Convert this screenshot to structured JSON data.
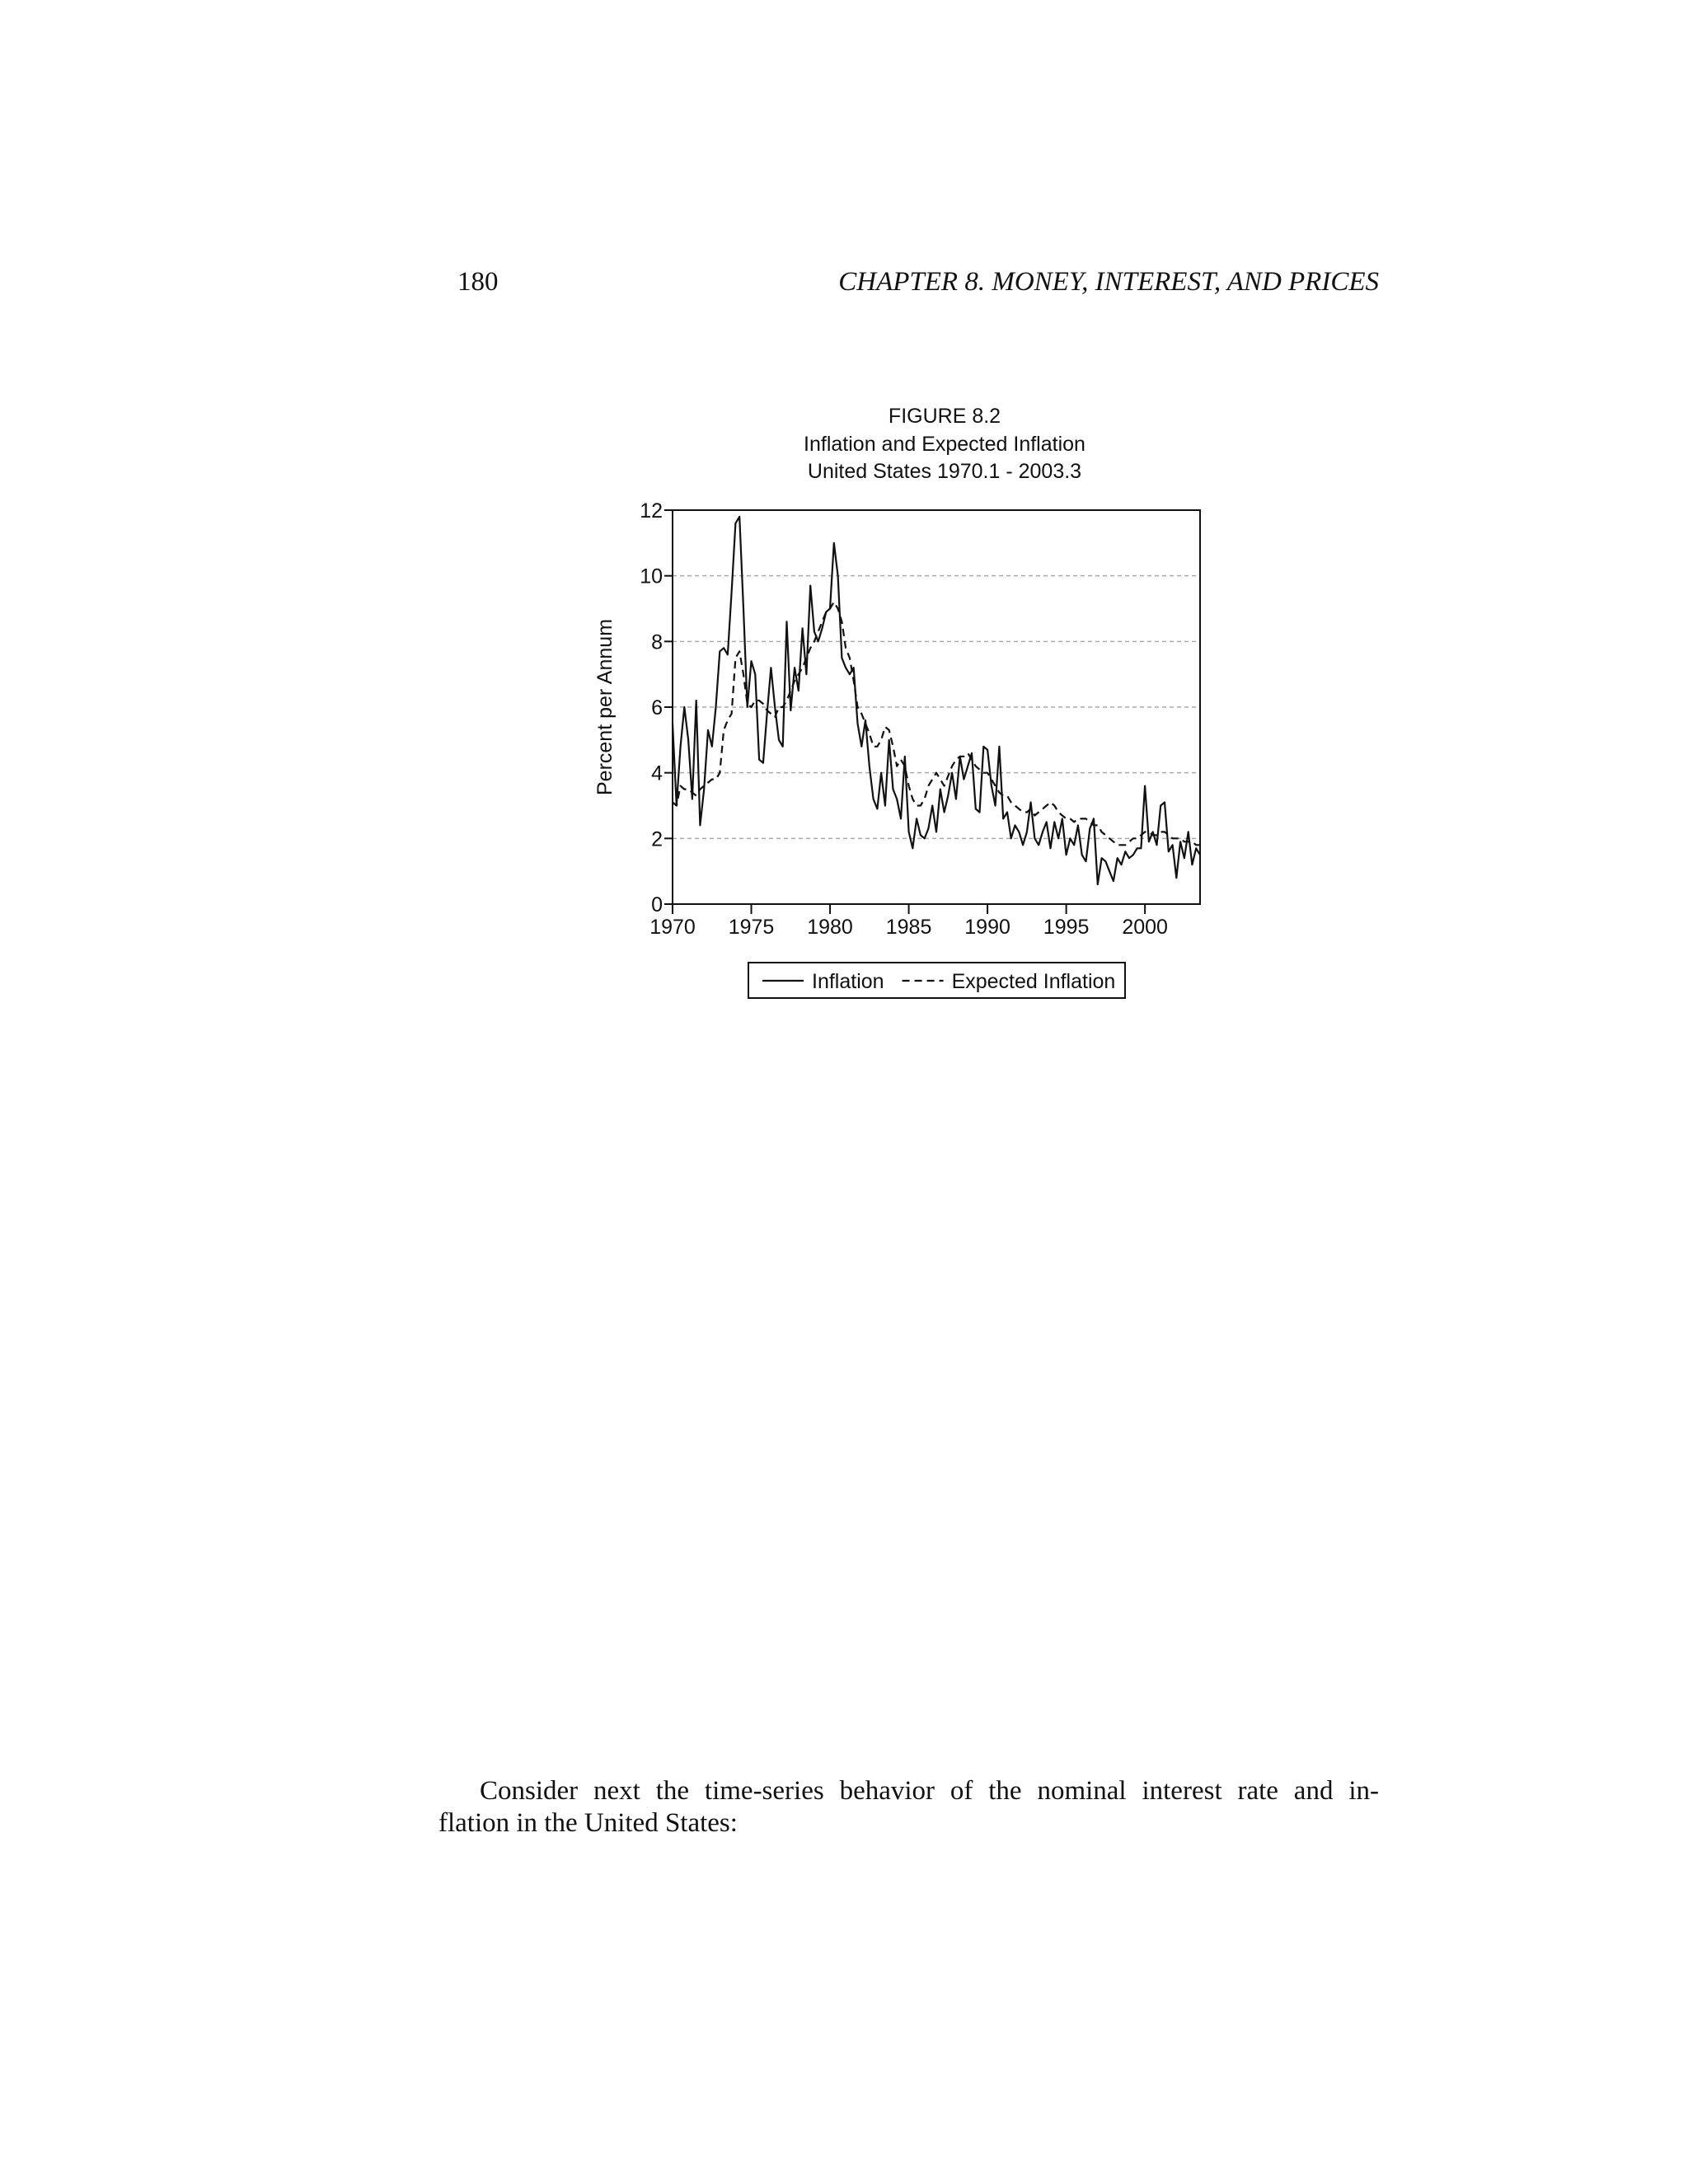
{
  "header": {
    "page_number": "180",
    "chapter": "CHAPTER 8.  MONEY, INTEREST, AND PRICES"
  },
  "chart_data": {
    "type": "line",
    "title": [
      "FIGURE 8.2",
      "Inflation and Expected Inflation",
      "United States 1970.1 - 2003.3"
    ],
    "y_label": "Percent per Annum",
    "xlim": [
      1970,
      2003.5
    ],
    "ylim": [
      0,
      12
    ],
    "xticks": [
      1970,
      1975,
      1980,
      1985,
      1990,
      1995,
      2000
    ],
    "yticks": [
      0,
      2,
      4,
      6,
      8,
      10,
      12
    ],
    "grid": true,
    "legend": "bottom",
    "x": [
      1970,
      1970.25,
      1970.5,
      1970.75,
      1971,
      1971.25,
      1971.5,
      1971.75,
      1972,
      1972.25,
      1972.5,
      1972.75,
      1973,
      1973.25,
      1973.5,
      1973.75,
      1974,
      1974.25,
      1974.5,
      1974.75,
      1975,
      1975.25,
      1975.5,
      1975.75,
      1976,
      1976.25,
      1976.5,
      1976.75,
      1977,
      1977.25,
      1977.5,
      1977.75,
      1978,
      1978.25,
      1978.5,
      1978.75,
      1979,
      1979.25,
      1979.5,
      1979.75,
      1980,
      1980.25,
      1980.5,
      1980.75,
      1981,
      1981.25,
      1981.5,
      1981.75,
      1982,
      1982.25,
      1982.5,
      1982.75,
      1983,
      1983.25,
      1983.5,
      1983.75,
      1984,
      1984.25,
      1984.5,
      1984.75,
      1985,
      1985.25,
      1985.5,
      1985.75,
      1986,
      1986.25,
      1986.5,
      1986.75,
      1987,
      1987.25,
      1987.5,
      1987.75,
      1988,
      1988.25,
      1988.5,
      1988.75,
      1989,
      1989.25,
      1989.5,
      1989.75,
      1990,
      1990.25,
      1990.5,
      1990.75,
      1991,
      1991.25,
      1991.5,
      1991.75,
      1992,
      1992.25,
      1992.5,
      1992.75,
      1993,
      1993.25,
      1993.5,
      1993.75,
      1994,
      1994.25,
      1994.5,
      1994.75,
      1995,
      1995.25,
      1995.5,
      1995.75,
      1996,
      1996.25,
      1996.5,
      1996.75,
      1997,
      1997.25,
      1997.5,
      1997.75,
      1998,
      1998.25,
      1998.5,
      1998.75,
      1999,
      1999.25,
      1999.5,
      1999.75,
      2000,
      2000.25,
      2000.5,
      2000.75,
      2001,
      2001.25,
      2001.5,
      2001.75,
      2002,
      2002.25,
      2002.5,
      2002.75,
      2003,
      2003.25,
      2003.5
    ],
    "series": [
      {
        "name": "Inflation",
        "color": "#111111",
        "dash": "solid",
        "values": [
          5.5,
          3.0,
          4.8,
          6.0,
          5.0,
          3.2,
          6.2,
          2.4,
          3.5,
          5.3,
          4.8,
          6.0,
          7.7,
          7.8,
          7.6,
          9.5,
          11.6,
          11.8,
          9.0,
          6.0,
          7.4,
          7.0,
          4.4,
          4.3,
          5.8,
          7.2,
          6.0,
          5.0,
          4.8,
          8.6,
          5.9,
          7.2,
          6.5,
          8.4,
          7.0,
          9.7,
          8.3,
          8.0,
          8.4,
          8.9,
          9.0,
          11.0,
          10.0,
          7.5,
          7.2,
          7.0,
          7.2,
          5.5,
          4.8,
          5.6,
          4.2,
          3.2,
          2.9,
          4.0,
          3.0,
          5.0,
          3.5,
          3.2,
          2.6,
          4.5,
          2.2,
          1.7,
          2.6,
          2.1,
          2.0,
          2.3,
          3.0,
          2.2,
          3.5,
          2.8,
          3.3,
          4.0,
          3.2,
          4.5,
          3.8,
          4.2,
          4.6,
          2.9,
          2.8,
          4.8,
          4.7,
          3.6,
          3.0,
          4.8,
          2.6,
          2.8,
          2.0,
          2.4,
          2.2,
          1.8,
          2.2,
          3.1,
          2.0,
          1.8,
          2.2,
          2.5,
          1.7,
          2.5,
          2.0,
          2.6,
          1.5,
          2.0,
          1.8,
          2.4,
          1.5,
          1.3,
          2.3,
          2.6,
          0.6,
          1.4,
          1.3,
          1.0,
          0.7,
          1.4,
          1.2,
          1.6,
          1.4,
          1.5,
          1.7,
          1.7,
          3.6,
          1.9,
          2.2,
          1.8,
          3.0,
          3.1,
          1.6,
          1.8,
          0.8,
          1.9,
          1.4,
          2.2,
          1.2,
          1.7,
          1.5
        ]
      },
      {
        "name": "Expected Inflation",
        "color": "#111111",
        "dash": "dashed",
        "values": [
          3.1,
          3.0,
          3.6,
          3.5,
          3.5,
          3.4,
          3.3,
          3.5,
          3.6,
          3.7,
          3.8,
          3.8,
          4.0,
          5.3,
          5.6,
          5.8,
          7.5,
          7.7,
          7.0,
          6.1,
          6.0,
          6.2,
          6.2,
          6.1,
          5.9,
          5.8,
          5.7,
          6.0,
          6.0,
          6.2,
          6.5,
          6.8,
          7.0,
          7.2,
          7.5,
          7.8,
          8.0,
          8.3,
          8.6,
          8.9,
          9.0,
          9.2,
          9.0,
          8.6,
          7.8,
          7.5,
          6.8,
          6.0,
          5.8,
          5.5,
          5.2,
          4.8,
          4.8,
          5.0,
          5.4,
          5.3,
          4.8,
          4.2,
          4.4,
          4.2,
          3.6,
          3.2,
          3.0,
          3.0,
          3.2,
          3.6,
          3.8,
          4.0,
          3.8,
          3.6,
          3.9,
          4.2,
          4.4,
          4.5,
          4.5,
          4.6,
          4.4,
          4.2,
          4.1,
          4.0,
          4.0,
          3.8,
          3.6,
          3.4,
          3.3,
          3.3,
          3.1,
          3.0,
          2.9,
          2.8,
          2.8,
          2.9,
          2.7,
          2.8,
          2.9,
          3.0,
          3.1,
          3.0,
          2.8,
          2.7,
          2.6,
          2.6,
          2.5,
          2.6,
          2.6,
          2.6,
          2.5,
          2.4,
          2.4,
          2.2,
          2.1,
          2.0,
          1.9,
          1.8,
          1.8,
          1.8,
          1.9,
          2.0,
          2.0,
          2.1,
          2.2,
          2.2,
          2.1,
          2.1,
          2.2,
          2.2,
          2.1,
          2.0,
          2.0,
          2.0,
          1.9,
          1.9,
          1.9,
          1.8,
          1.8
        ]
      }
    ]
  },
  "paragraph": {
    "lines": [
      "Consider next the time-series behavior of the nominal interest rate and in-",
      "flation in the United States:"
    ]
  }
}
